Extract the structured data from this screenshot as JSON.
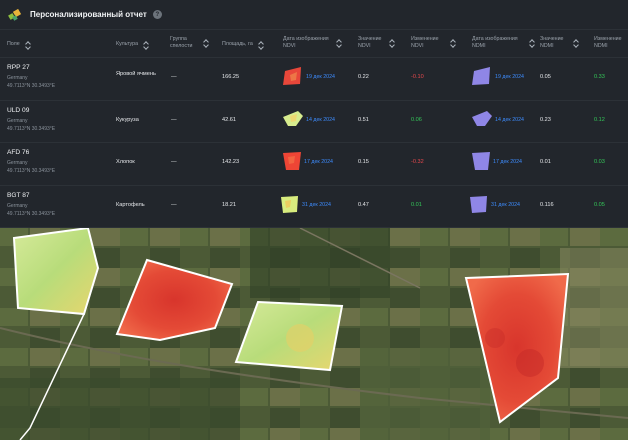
{
  "header": {
    "title": "Персонализированный отчет",
    "help": "?"
  },
  "columns": {
    "field": "Поле",
    "culture": "Культура",
    "group": "Группа спелости",
    "area": "Площадь, га",
    "ndvi_date": "Дата изображения NDVI",
    "ndvi_value": "Значение NDVI",
    "ndvi_change": "Изменение NDVI",
    "ndmi_date": "Дата изображения NDMI",
    "ndmi_value": "Значение NDMI",
    "ndmi_change": "Изменение NDMI"
  },
  "rows": [
    {
      "id": "RPP 27",
      "country": "Germany",
      "coords": "49.7113°N 30.3493°E",
      "culture": "Яровой ячмень",
      "group": "—",
      "area": "166.25",
      "ndvi_date": "19 дек 2024",
      "ndvi_value": "0.22",
      "ndvi_change": "-0.10",
      "ndmi_date": "19 дек 2024",
      "ndmi_value": "0.05",
      "ndmi_change": "0.33",
      "ndvi_color": "#e84a3a",
      "ndmi_color": "#8f86e6"
    },
    {
      "id": "ULD 09",
      "country": "Germany",
      "coords": "49.7113°N 30.3493°E",
      "culture": "Кукуруза",
      "group": "—",
      "area": "42.61",
      "ndvi_date": "14 дек 2024",
      "ndvi_value": "0.51",
      "ndvi_change": "0.06",
      "ndmi_date": "14 дек 2024",
      "ndmi_value": "0.23",
      "ndmi_change": "0.12",
      "ndvi_color": "#d7ec8e",
      "ndmi_color": "#8f86e6"
    },
    {
      "id": "AFD 76",
      "country": "Germany",
      "coords": "49.7113°N 30.3493°E",
      "culture": "Хлопок",
      "group": "—",
      "area": "142.23",
      "ndvi_date": "17 дек 2024",
      "ndvi_value": "0.15",
      "ndvi_change": "-0.32",
      "ndmi_date": "17 дек 2024",
      "ndmi_value": "0.01",
      "ndmi_change": "0.03",
      "ndvi_color": "#ee4535",
      "ndmi_color": "#8f86e6"
    },
    {
      "id": "BGT 87",
      "country": "Germany",
      "coords": "49.7113°N 30.3493°E",
      "culture": "Картофель",
      "group": "—",
      "area": "18.21",
      "ndvi_date": "31 дек 2024",
      "ndvi_value": "0.47",
      "ndvi_change": "0.01",
      "ndmi_date": "31 дек 2024",
      "ndmi_value": "0.116",
      "ndmi_change": "0.05",
      "ndvi_color": "#d8ec7e",
      "ndmi_color": "#8f86e6"
    }
  ]
}
